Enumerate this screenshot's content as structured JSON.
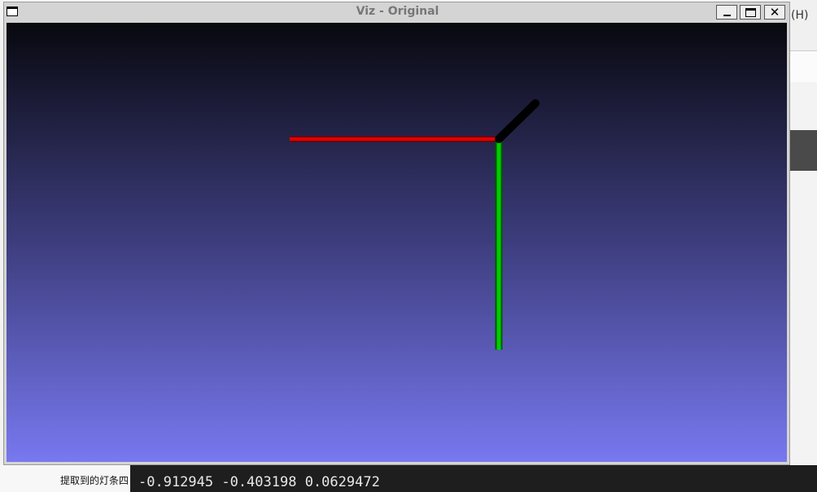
{
  "window": {
    "title": "Viz - Original"
  },
  "background": {
    "menu_hint": "(H)",
    "side_label": "提取到的灯条四",
    "console_line": "-0.912945 -0.403198 0.0629472"
  }
}
